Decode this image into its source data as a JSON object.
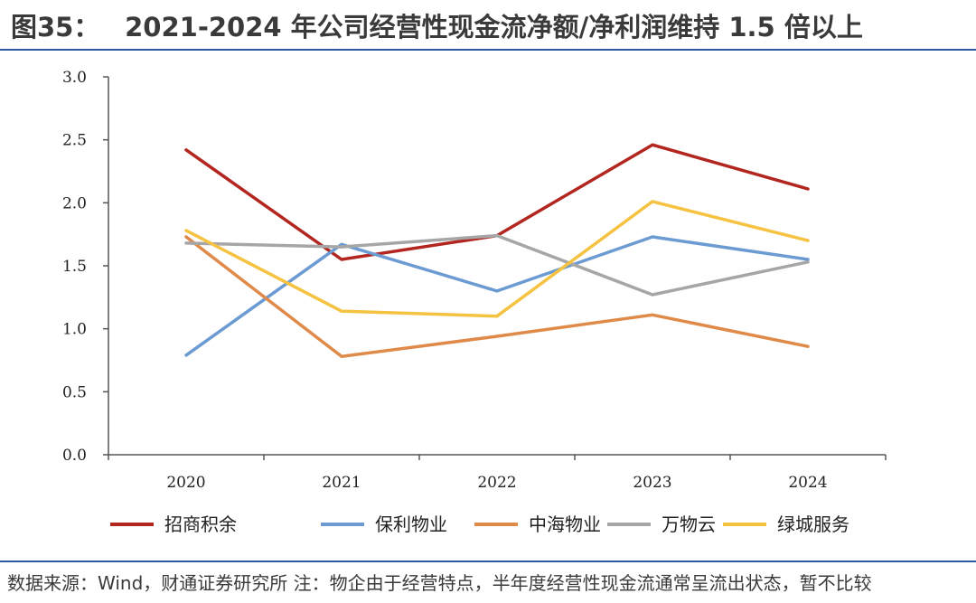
{
  "figure": {
    "label": "图35：",
    "title": "2021-2024 年公司经营性现金流净额/净利润维持 1.5 倍以上",
    "source": "数据来源：Wind，财通证券研究所 注：物企由于经营特点，半年度经营性现金流通常呈流出状态，暂不比较"
  },
  "chart_data": {
    "type": "line",
    "title": "2021-2024 年公司经营性现金流净额/净利润维持 1.5 倍以上",
    "xlabel": "",
    "ylabel": "",
    "categories": [
      "2020",
      "2021",
      "2022",
      "2023",
      "2024"
    ],
    "ylim": [
      0,
      3.0
    ],
    "yticks": [
      "0.0",
      "0.5",
      "1.0",
      "1.5",
      "2.0",
      "2.5",
      "3.0"
    ],
    "grid": false,
    "legend": "bottom",
    "series": [
      {
        "name": "招商积余",
        "color": "#b32620",
        "values": [
          2.42,
          1.55,
          1.74,
          2.46,
          2.11
        ]
      },
      {
        "name": "保利物业",
        "color": "#6b9bd2",
        "values": [
          0.79,
          1.67,
          1.3,
          1.73,
          1.55
        ]
      },
      {
        "name": "中海物业",
        "color": "#e08a4a",
        "values": [
          1.73,
          0.78,
          0.94,
          1.11,
          0.86
        ]
      },
      {
        "name": "万物云",
        "color": "#a6a6a6",
        "values": [
          1.68,
          1.65,
          1.74,
          1.27,
          1.53
        ]
      },
      {
        "name": "绿城服务",
        "color": "#f5c341",
        "values": [
          1.78,
          1.14,
          1.1,
          2.01,
          1.7
        ]
      }
    ]
  }
}
